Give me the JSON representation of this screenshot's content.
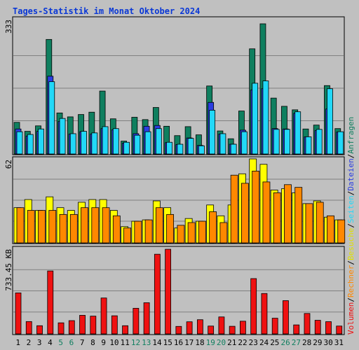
{
  "chart_data": {
    "type": "bar",
    "title": "Tages-Statistik im Monat Oktober 2024",
    "categories": [
      "1",
      "2",
      "3",
      "4",
      "5",
      "6",
      "7",
      "8",
      "9",
      "10",
      "11",
      "12",
      "13",
      "14",
      "15",
      "16",
      "17",
      "18",
      "19",
      "20",
      "21",
      "22",
      "23",
      "24",
      "25",
      "26",
      "27",
      "28",
      "29",
      "30",
      "31"
    ],
    "weekend_days": [
      "5",
      "6",
      "12",
      "13",
      "19",
      "20",
      "26",
      "27"
    ],
    "panels": [
      {
        "id": "anfragen",
        "scale_label": "333",
        "ymax": 333,
        "series": [
          {
            "name": "Anfragen",
            "color": "#0f7f5f",
            "values": [
              81,
              58,
              72,
              293,
              105,
              95,
              101,
              107,
              161,
              90,
              33,
              94,
              88,
              119,
              71,
              47,
              70,
              49,
              174,
              59,
              39,
              110,
              269,
              333,
              143,
              122,
              113,
              64,
              74,
              175,
              65
            ]
          },
          {
            "name": "Dateien",
            "color": "#2b3ee2",
            "values": [
              64,
              46,
              58,
              199,
              83,
              51,
              57,
              51,
              65,
              62,
              28,
              52,
              71,
              73,
              29,
              24,
              41,
              22,
              132,
              51,
              25,
              61,
              164,
              167,
              65,
              64,
              104,
              44,
              60,
              115,
              56
            ]
          },
          {
            "name": "Seiten",
            "color": "#22d8f8",
            "values": [
              57,
              50,
              64,
              185,
              91,
              52,
              58,
              54,
              70,
              65,
              30,
              48,
              57,
              65,
              30,
              25,
              40,
              21,
              112,
              52,
              25,
              57,
              181,
              187,
              63,
              63,
              108,
              44,
              63,
              167,
              57
            ]
          }
        ]
      },
      {
        "id": "besuche",
        "scale_label": "62",
        "ymax": 62,
        "series": [
          {
            "name": "Besuche",
            "color": "#ffff00",
            "values": [
              26,
              32,
              24,
              34,
              26,
              24,
              30,
              32,
              32,
              24,
              12,
              16,
              17,
              31,
              26,
              11,
              18,
              16,
              28,
              20,
              28,
              51,
              62,
              58,
              39,
              40,
              37,
              29,
              31,
              19,
              17
            ]
          },
          {
            "name": "Rechner",
            "color": "#ff8800",
            "values": [
              26,
              24,
              24,
              24,
              21,
              21,
              26,
              26,
              26,
              20,
              11,
              16,
              17,
              26,
              21,
              13,
              15,
              16,
              23,
              15,
              50,
              44,
              53,
              45,
              37,
              43,
              41,
              29,
              30,
              20,
              17
            ]
          }
        ]
      },
      {
        "id": "volumen",
        "scale_label": "733.45 KB",
        "ymax": 733.45,
        "series": [
          {
            "name": "Volumen",
            "color": "#ef1111",
            "values": [
              355,
              107,
              71,
              545,
              96,
              115,
              161,
              154,
              311,
              157,
              71,
              222,
              270,
              690,
              733,
              65,
              105,
              123,
              68,
              147,
              66,
              110,
              479,
              350,
              136,
              288,
              78,
              177,
              118,
              106,
              68
            ]
          }
        ]
      }
    ],
    "right_legend": [
      "Anfragen",
      "Dateien",
      "Seiten",
      "Besuche",
      "Rechner",
      "Volumen"
    ]
  }
}
